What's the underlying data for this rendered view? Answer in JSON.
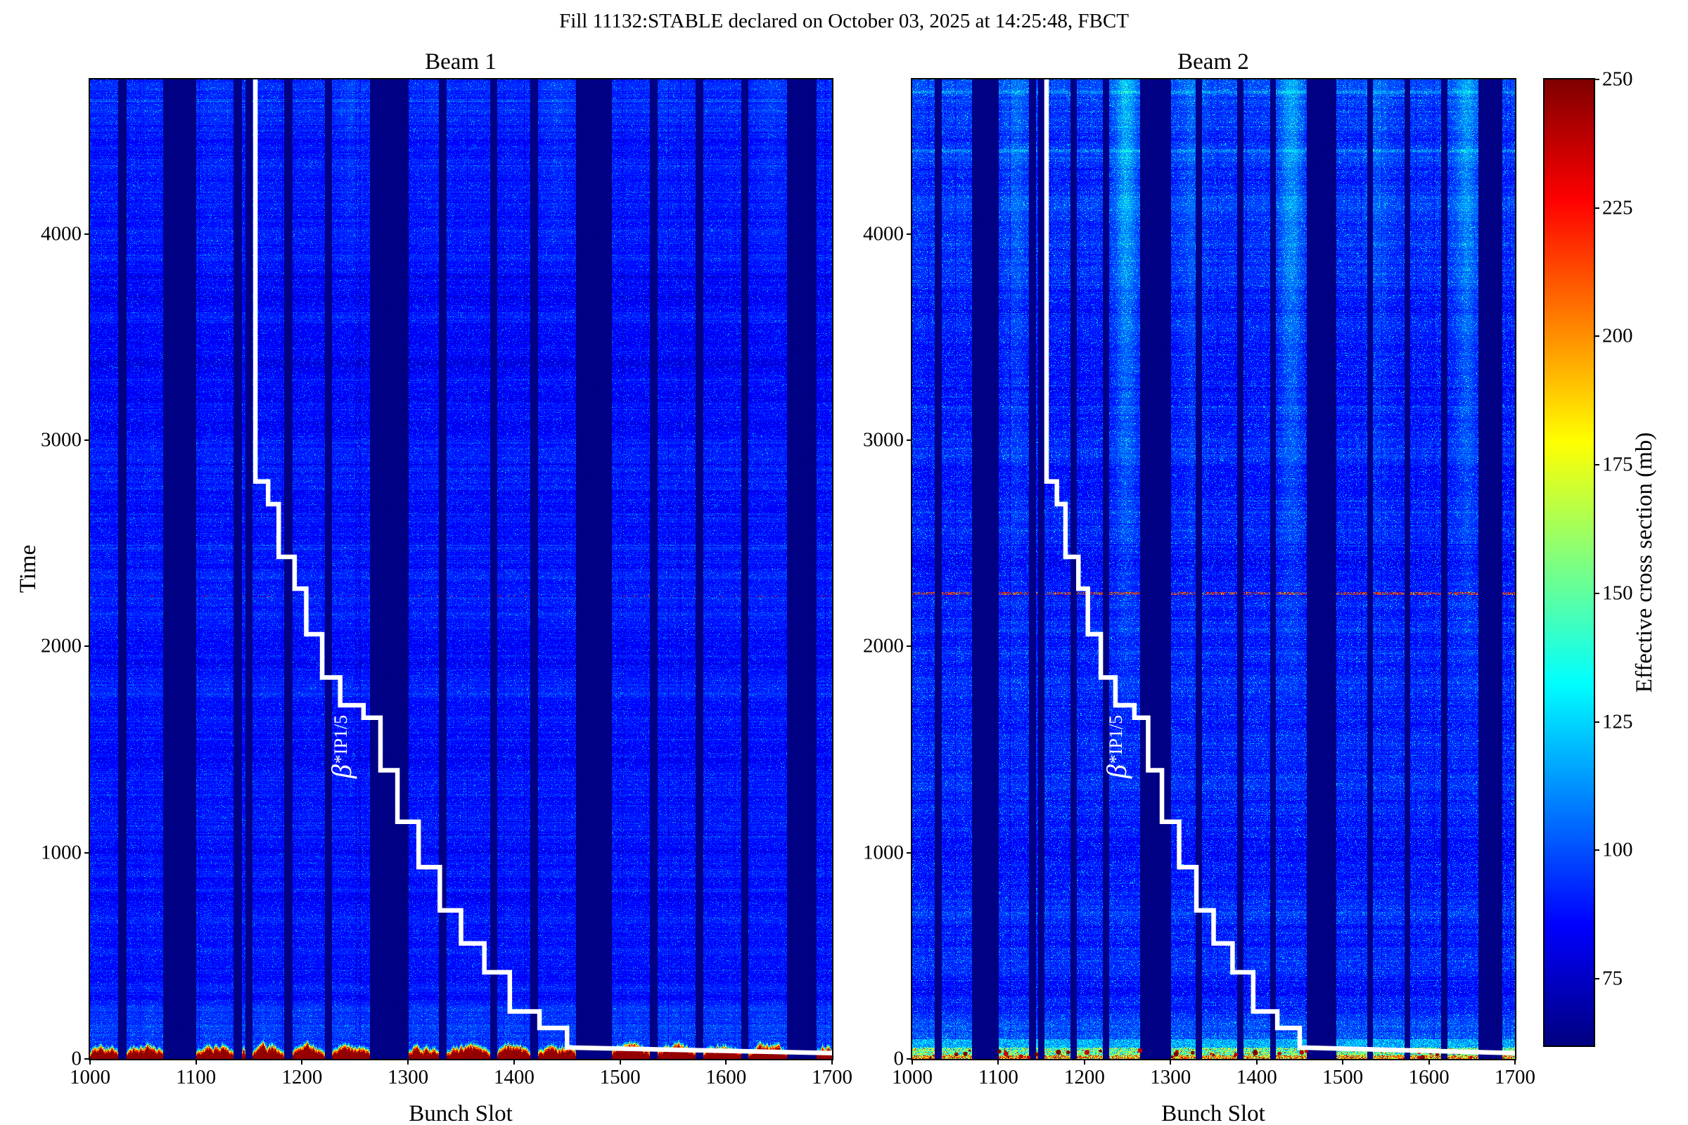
{
  "header": {
    "suptitle": "Fill 11132:STABLE declared on October 03, 2025 at 14:25:48, FBCT"
  },
  "chart_data": {
    "type": "heatmap",
    "colormap": "jet",
    "suptitle": "Fill 11132:STABLE declared on October 03, 2025 at 14:25:48, FBCT",
    "subplots": [
      {
        "id": "beam1",
        "title": "Beam 1",
        "xlabel": "Bunch Slot",
        "ylabel": "Time",
        "xlim": [
          1000,
          1700
        ],
        "ylim": [
          0,
          4750
        ],
        "xticks": [
          1000,
          1100,
          1200,
          1300,
          1400,
          1500,
          1600,
          1700
        ],
        "yticks": [
          0,
          1000,
          2000,
          3000,
          4000
        ],
        "bottom_band_style": "dark-red-blobs",
        "faint_row_time": 2243
      },
      {
        "id": "beam2",
        "title": "Beam 2",
        "xlabel": "Bunch Slot",
        "ylabel": "",
        "xlim": [
          1000,
          1700
        ],
        "ylim": [
          0,
          4750
        ],
        "xticks": [
          1000,
          1100,
          1200,
          1300,
          1400,
          1500,
          1600,
          1700
        ],
        "yticks": [
          0,
          1000,
          2000,
          3000,
          4000
        ],
        "bottom_band_style": "warm-speckle",
        "red_line_time": 2257
      }
    ],
    "colorbar": {
      "label": "Effective cross section (mb)",
      "vmin": 62,
      "vmax": 250,
      "ticks": [
        75,
        100,
        125,
        150,
        175,
        200,
        225,
        250
      ]
    },
    "empty_slot_bands": [
      [
        1026,
        1034
      ],
      [
        1069,
        1100
      ],
      [
        1135,
        1143
      ],
      [
        1146,
        1153
      ],
      [
        1183,
        1191
      ],
      [
        1221,
        1228
      ],
      [
        1264,
        1300
      ],
      [
        1329,
        1336
      ],
      [
        1377,
        1384
      ],
      [
        1415,
        1422
      ],
      [
        1458,
        1492
      ],
      [
        1528,
        1535
      ],
      [
        1571,
        1578
      ],
      [
        1614,
        1621
      ],
      [
        1657,
        1685
      ]
    ],
    "beta_star_line": {
      "label": "β*IP1/5",
      "label_parts": {
        "base": "β",
        "sup": "*",
        "sub": "IP1/5"
      },
      "label_position": {
        "slot": 1237,
        "time": 1510
      },
      "points": [
        [
          1156,
          4750
        ],
        [
          1156,
          2800
        ],
        [
          1168,
          2800
        ],
        [
          1168,
          2690
        ],
        [
          1178,
          2690
        ],
        [
          1178,
          2435
        ],
        [
          1193,
          2435
        ],
        [
          1193,
          2280
        ],
        [
          1204,
          2280
        ],
        [
          1204,
          2060
        ],
        [
          1219,
          2060
        ],
        [
          1219,
          1850
        ],
        [
          1236,
          1850
        ],
        [
          1236,
          1715
        ],
        [
          1258,
          1715
        ],
        [
          1258,
          1655
        ],
        [
          1274,
          1655
        ],
        [
          1274,
          1400
        ],
        [
          1290,
          1400
        ],
        [
          1290,
          1150
        ],
        [
          1310,
          1150
        ],
        [
          1310,
          930
        ],
        [
          1330,
          930
        ],
        [
          1330,
          720
        ],
        [
          1350,
          720
        ],
        [
          1350,
          560
        ],
        [
          1372,
          560
        ],
        [
          1372,
          420
        ],
        [
          1396,
          420
        ],
        [
          1396,
          230
        ],
        [
          1424,
          230
        ],
        [
          1424,
          150
        ],
        [
          1450,
          150
        ],
        [
          1450,
          55
        ],
        [
          1700,
          28
        ]
      ]
    },
    "bright_columns_beam2": [
      [
        1248,
        26
      ],
      [
        1440,
        22
      ],
      [
        1643,
        20
      ],
      [
        1120,
        10
      ],
      [
        1325,
        9
      ],
      [
        1540,
        8
      ]
    ],
    "background_value": 87,
    "colors": {
      "field_blue": "#0000f1",
      "gap_navy": "#000084",
      "hot_dark_red": "#8e0000",
      "step_line_white": "#ffffff"
    }
  }
}
